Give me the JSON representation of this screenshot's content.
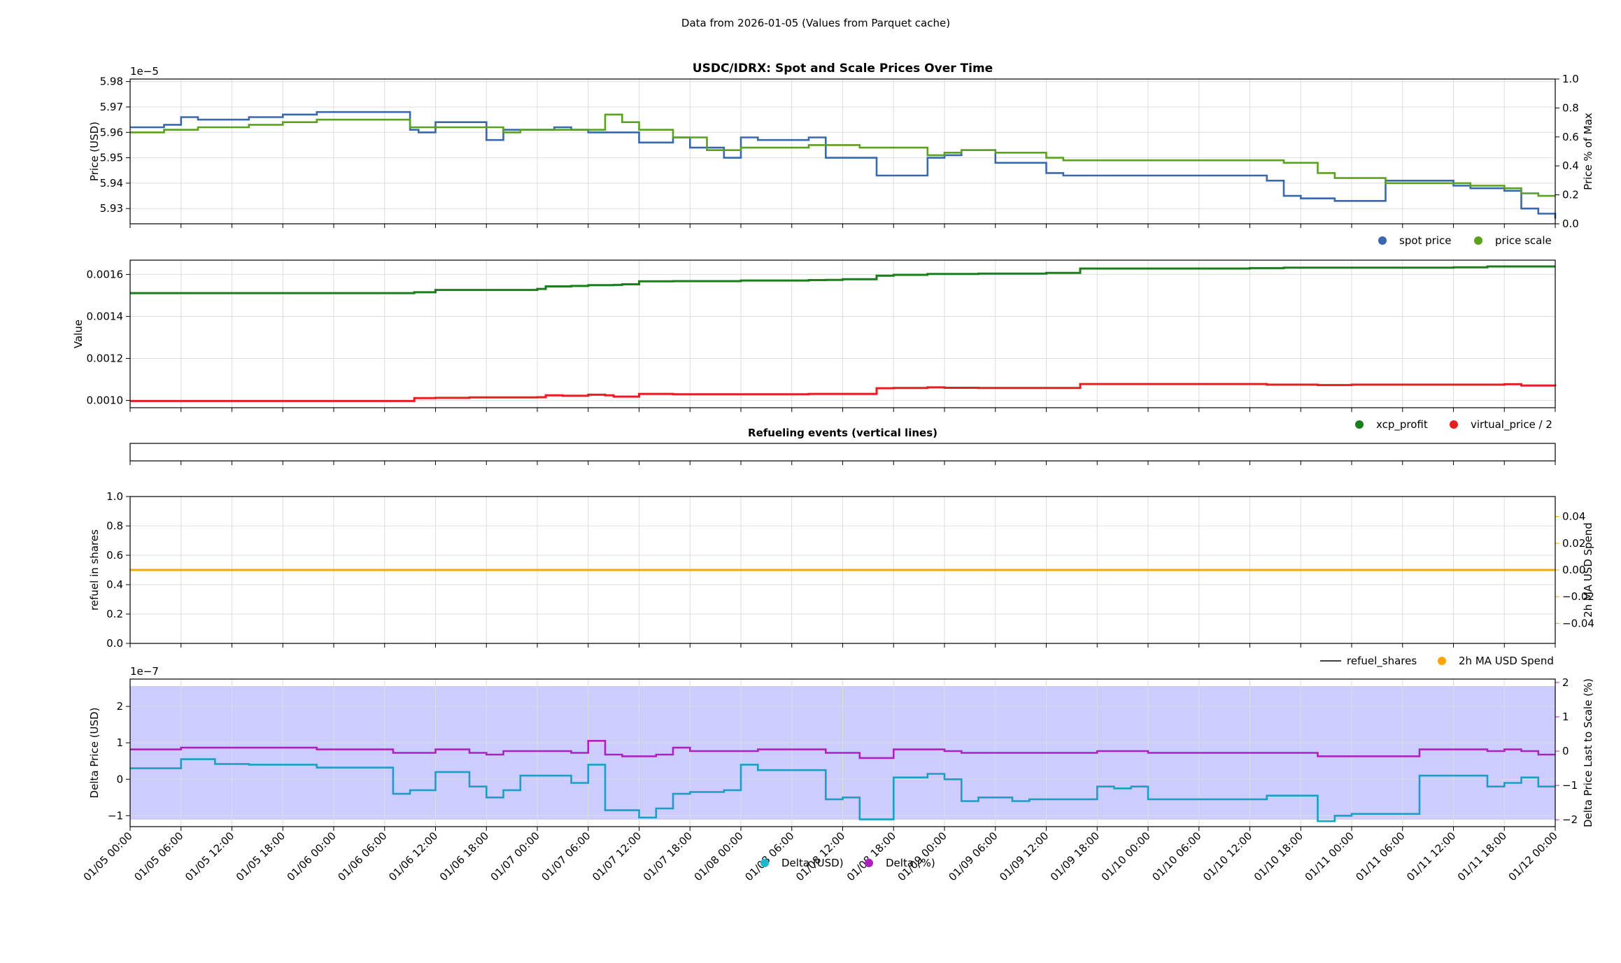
{
  "header": {
    "supertitle": "Data from 2026-01-05 (Values from Parquet cache)"
  },
  "time_axis": {
    "tick_labels": [
      "01/05 00:00",
      "01/05 06:00",
      "01/05 12:00",
      "01/05 18:00",
      "01/06 00:00",
      "01/06 06:00",
      "01/06 12:00",
      "01/06 18:00",
      "01/07 00:00",
      "01/07 06:00",
      "01/07 12:00",
      "01/07 18:00",
      "01/08 00:00",
      "01/08 06:00",
      "01/08 12:00",
      "01/08 18:00",
      "01/09 00:00",
      "01/09 06:00",
      "01/09 12:00",
      "01/09 18:00",
      "01/10 00:00",
      "01/10 06:00",
      "01/10 12:00",
      "01/10 18:00",
      "01/11 00:00",
      "01/11 06:00",
      "01/11 12:00",
      "01/11 18:00",
      "01/12 00:00"
    ]
  },
  "chart_data": [
    {
      "type": "line",
      "title": "USDC/IDRX: Spot and Scale Prices Over Time",
      "ylabel": "Price (USD)",
      "y_offset_label": "1e−5",
      "ylim": [
        5.924,
        5.981
      ],
      "yticks": [
        "5.93",
        "5.94",
        "5.95",
        "5.96",
        "5.97",
        "5.98"
      ],
      "ytick_values": [
        5.93,
        5.94,
        5.95,
        5.96,
        5.97,
        5.98
      ],
      "y2label": "Price % of Max",
      "y2lim": [
        0,
        1
      ],
      "y2ticks": [
        "0.0",
        "0.2",
        "0.4",
        "0.6",
        "0.8",
        "1.0"
      ],
      "grid": true,
      "legend_position": "below-right",
      "x_unit": "hours since 01/05 00:00",
      "xlim": [
        0,
        168
      ],
      "series": [
        {
          "name": "spot price",
          "color": "#3a68ae",
          "x": [
            0,
            2,
            4,
            6,
            8,
            10,
            14,
            18,
            22,
            26,
            30,
            33,
            34,
            36,
            38,
            42,
            44,
            46,
            48,
            50,
            52,
            54,
            56,
            58,
            60,
            62,
            64,
            66,
            68,
            70,
            72,
            74,
            76,
            80,
            82,
            84,
            86,
            88,
            90,
            94,
            96,
            98,
            100,
            102,
            104,
            106,
            108,
            110,
            112,
            114,
            116,
            118,
            120,
            122,
            124,
            126,
            128,
            130,
            134,
            136,
            138,
            140,
            142,
            144,
            146,
            148,
            150,
            154,
            156,
            158,
            160,
            162,
            164,
            166,
            168
          ],
          "y": [
            5.962,
            5.962,
            5.963,
            5.966,
            5.965,
            5.965,
            5.966,
            5.967,
            5.968,
            5.968,
            5.968,
            5.961,
            5.96,
            5.964,
            5.964,
            5.957,
            5.961,
            5.961,
            5.961,
            5.962,
            5.961,
            5.96,
            5.96,
            5.96,
            5.956,
            5.956,
            5.958,
            5.954,
            5.954,
            5.95,
            5.958,
            5.957,
            5.957,
            5.958,
            5.95,
            5.95,
            5.95,
            5.943,
            5.943,
            5.95,
            5.951,
            5.953,
            5.953,
            5.948,
            5.948,
            5.948,
            5.944,
            5.943,
            5.943,
            5.943,
            5.943,
            5.943,
            5.943,
            5.943,
            5.943,
            5.943,
            5.943,
            5.943,
            5.941,
            5.935,
            5.934,
            5.934,
            5.933,
            5.933,
            5.933,
            5.941,
            5.941,
            5.941,
            5.939,
            5.938,
            5.938,
            5.937,
            5.93,
            5.928,
            5.926
          ]
        },
        {
          "name": "price scale",
          "color": "#5aa21e",
          "x": [
            0,
            2,
            4,
            6,
            8,
            10,
            14,
            18,
            22,
            26,
            30,
            33,
            34,
            36,
            38,
            42,
            44,
            46,
            48,
            50,
            52,
            54,
            56,
            58,
            60,
            62,
            64,
            66,
            68,
            70,
            72,
            74,
            76,
            80,
            82,
            84,
            86,
            88,
            90,
            94,
            96,
            98,
            100,
            102,
            104,
            106,
            108,
            110,
            112,
            114,
            116,
            118,
            120,
            122,
            124,
            126,
            128,
            130,
            134,
            136,
            138,
            140,
            142,
            144,
            146,
            148,
            150,
            154,
            156,
            158,
            160,
            162,
            164,
            166,
            168
          ],
          "y": [
            5.96,
            5.96,
            5.961,
            5.961,
            5.962,
            5.962,
            5.963,
            5.964,
            5.965,
            5.965,
            5.965,
            5.962,
            5.962,
            5.962,
            5.962,
            5.962,
            5.96,
            5.961,
            5.961,
            5.961,
            5.961,
            5.961,
            5.967,
            5.964,
            5.961,
            5.961,
            5.958,
            5.958,
            5.953,
            5.953,
            5.954,
            5.954,
            5.954,
            5.955,
            5.955,
            5.955,
            5.954,
            5.954,
            5.954,
            5.951,
            5.952,
            5.953,
            5.953,
            5.952,
            5.952,
            5.952,
            5.95,
            5.949,
            5.949,
            5.949,
            5.949,
            5.949,
            5.949,
            5.949,
            5.949,
            5.949,
            5.949,
            5.949,
            5.949,
            5.948,
            5.948,
            5.944,
            5.942,
            5.942,
            5.942,
            5.94,
            5.94,
            5.94,
            5.94,
            5.939,
            5.939,
            5.938,
            5.936,
            5.935,
            5.935
          ]
        }
      ]
    },
    {
      "type": "line",
      "ylabel": "Value",
      "ylim": [
        0.000965,
        0.001668
      ],
      "yticks": [
        "0.0010",
        "0.0012",
        "0.0014",
        "0.0016"
      ],
      "ytick_values": [
        0.001,
        0.0012,
        0.0014,
        0.0016
      ],
      "grid": true,
      "legend_position": "below-right",
      "x_unit": "hours since 01/05 00:00",
      "xlim": [
        0,
        168
      ],
      "series": [
        {
          "name": "xcp_profit",
          "color": "#1a7e1a",
          "x": [
            0,
            20,
            30,
            33.5,
            36,
            40,
            48,
            49,
            52,
            54,
            57,
            58,
            60,
            64,
            72,
            80,
            82,
            84,
            86,
            88,
            90,
            94,
            96,
            100,
            108,
            112,
            120,
            128,
            132,
            136,
            140,
            144,
            152,
            156,
            160,
            164,
            168
          ],
          "y": [
            0.001511,
            0.001511,
            0.001511,
            0.001515,
            0.001526,
            0.001526,
            0.001531,
            0.001543,
            0.001545,
            0.001549,
            0.00155,
            0.001553,
            0.001567,
            0.001568,
            0.001571,
            0.001573,
            0.001574,
            0.001577,
            0.001577,
            0.001594,
            0.001598,
            0.001602,
            0.001602,
            0.001604,
            0.001607,
            0.001628,
            0.001628,
            0.001628,
            0.00163,
            0.001632,
            0.001632,
            0.001632,
            0.001632,
            0.001634,
            0.001638,
            0.001638,
            0.001638
          ]
        },
        {
          "name": "virtual_price / 2",
          "color": "#e61e1e",
          "x": [
            0,
            20,
            30,
            33.5,
            36,
            40,
            48,
            49,
            51,
            54,
            56,
            57,
            60,
            64,
            72,
            74,
            80,
            82,
            84,
            86,
            88,
            90,
            94,
            96,
            100,
            108,
            112,
            120,
            128,
            130,
            134,
            140,
            144,
            152,
            156,
            160,
            162,
            164,
            168
          ],
          "y": [
            0.000997,
            0.000997,
            0.000997,
            0.001011,
            0.001012,
            0.001014,
            0.001015,
            0.001024,
            0.001022,
            0.001027,
            0.001024,
            0.001018,
            0.001031,
            0.001029,
            0.001029,
            0.001029,
            0.001031,
            0.001031,
            0.001031,
            0.001031,
            0.001058,
            0.001059,
            0.001062,
            0.00106,
            0.001059,
            0.001059,
            0.001078,
            0.001078,
            0.001078,
            0.001078,
            0.001075,
            0.001073,
            0.001075,
            0.001075,
            0.001075,
            0.001075,
            0.001077,
            0.001071,
            0.001069
          ]
        }
      ]
    },
    {
      "type": "line",
      "title": "Refueling events (vertical lines)",
      "series": []
    },
    {
      "type": "line",
      "ylabel": "refuel in shares",
      "ylim": [
        0,
        1
      ],
      "yticks": [
        "0.0",
        "0.2",
        "0.4",
        "0.6",
        "0.8",
        "1.0"
      ],
      "ytick_values": [
        0,
        0.2,
        0.4,
        0.6,
        0.8,
        1.0
      ],
      "y2label": "2h MA USD Spend",
      "y2lim": [
        -0.055,
        0.055
      ],
      "y2ticks": [
        "−0.04",
        "−0.02",
        "0.00",
        "0.02",
        "0.04"
      ],
      "y2tick_values": [
        -0.04,
        -0.02,
        0,
        0.02,
        0.04
      ],
      "grid": true,
      "legend_position": "below-right",
      "x_unit": "hours since 01/05 00:00",
      "xlim": [
        0,
        168
      ],
      "series": [
        {
          "name": "refuel_shares",
          "color": "#000000",
          "x": [],
          "y": []
        },
        {
          "name": "2h MA USD Spend",
          "color": "#ffa500",
          "axis": "right",
          "x": [
            0,
            168
          ],
          "y": [
            0,
            0
          ]
        }
      ]
    },
    {
      "type": "line",
      "ylabel": "Delta Price (USD)",
      "y_offset_label": "1e−7",
      "ylim": [
        -1.3,
        2.75
      ],
      "yticks": [
        "−1",
        "0",
        "1",
        "2"
      ],
      "ytick_values": [
        -1,
        0,
        1,
        2
      ],
      "y2label": "Delta Price Last to Scale (%)",
      "y2lim": [
        -2.2,
        2.1
      ],
      "y2ticks": [
        "−2",
        "−1",
        "0",
        "1",
        "2"
      ],
      "y2tick_values": [
        -2,
        -1,
        0,
        1,
        2
      ],
      "background_color": "#ccccff",
      "grid": true,
      "legend_position": "below-center",
      "x_unit": "hours since 01/05 00:00",
      "xlim": [
        0,
        168
      ],
      "series": [
        {
          "name": "Delta (USD)",
          "color": "#1a9fc8",
          "x": [
            0,
            4,
            6,
            10,
            14,
            18,
            22,
            26,
            30,
            31,
            33,
            36,
            38,
            40,
            42,
            44,
            46,
            48,
            50,
            52,
            54,
            56,
            58,
            60,
            62,
            64,
            66,
            68,
            70,
            72,
            74,
            76,
            80,
            82,
            84,
            86,
            88,
            90,
            94,
            96,
            98,
            100,
            102,
            104,
            106,
            108,
            110,
            112,
            114,
            116,
            118,
            120,
            122,
            124,
            126,
            128,
            130,
            134,
            136,
            138,
            140,
            142,
            144,
            146,
            148,
            150,
            152,
            154,
            156,
            158,
            160,
            162,
            164,
            166,
            168
          ],
          "y": [
            0.3,
            0.3,
            0.55,
            0.42,
            0.4,
            0.4,
            0.32,
            0.32,
            0.32,
            -0.4,
            -0.3,
            0.2,
            0.2,
            -0.2,
            -0.5,
            -0.3,
            0.1,
            0.1,
            0.1,
            -0.1,
            0.4,
            -0.85,
            -0.85,
            -1.05,
            -0.8,
            -0.4,
            -0.35,
            -0.35,
            -0.3,
            0.4,
            0.25,
            0.25,
            0.25,
            -0.55,
            -0.5,
            -1.1,
            -1.1,
            0.05,
            0.15,
            0.0,
            -0.6,
            -0.5,
            -0.5,
            -0.6,
            -0.55,
            -0.55,
            -0.55,
            -0.55,
            -0.2,
            -0.25,
            -0.2,
            -0.55,
            -0.55,
            -0.55,
            -0.55,
            -0.55,
            -0.55,
            -0.45,
            -0.45,
            -0.45,
            -1.15,
            -1.0,
            -0.95,
            -0.95,
            -0.95,
            -0.95,
            0.1,
            0.1,
            0.1,
            0.1,
            -0.2,
            -0.1,
            0.05,
            -0.2,
            -0.2
          ]
        },
        {
          "name": "Delta (%)",
          "color": "#b020c0",
          "axis": "right",
          "x": [
            0,
            4,
            6,
            10,
            14,
            18,
            22,
            26,
            30,
            31,
            33,
            36,
            38,
            40,
            42,
            44,
            46,
            48,
            50,
            52,
            54,
            56,
            58,
            60,
            62,
            64,
            66,
            68,
            70,
            72,
            74,
            76,
            80,
            82,
            84,
            86,
            88,
            90,
            94,
            96,
            98,
            100,
            102,
            104,
            106,
            108,
            110,
            112,
            114,
            116,
            118,
            120,
            122,
            124,
            126,
            128,
            130,
            134,
            136,
            138,
            140,
            142,
            144,
            146,
            148,
            150,
            152,
            154,
            156,
            158,
            160,
            162,
            164,
            166,
            168
          ],
          "y": [
            0.05,
            0.05,
            0.1,
            0.1,
            0.1,
            0.1,
            0.05,
            0.05,
            0.05,
            -0.05,
            -0.05,
            0.05,
            0.05,
            -0.05,
            -0.1,
            0.0,
            0.0,
            0.0,
            0.0,
            -0.05,
            0.3,
            -0.1,
            -0.15,
            -0.15,
            -0.1,
            0.1,
            0.0,
            0.0,
            0.0,
            0.0,
            0.05,
            0.05,
            0.05,
            -0.05,
            -0.05,
            -0.2,
            -0.2,
            0.05,
            0.05,
            0.0,
            -0.05,
            -0.05,
            -0.05,
            -0.05,
            -0.05,
            -0.05,
            -0.05,
            -0.05,
            0.0,
            0.0,
            0.0,
            -0.05,
            -0.05,
            -0.05,
            -0.05,
            -0.05,
            -0.05,
            -0.05,
            -0.05,
            -0.05,
            -0.15,
            -0.15,
            -0.15,
            -0.15,
            -0.15,
            -0.15,
            0.05,
            0.05,
            0.05,
            0.05,
            0.0,
            0.05,
            0.0,
            -0.1,
            -0.1
          ]
        }
      ]
    }
  ]
}
